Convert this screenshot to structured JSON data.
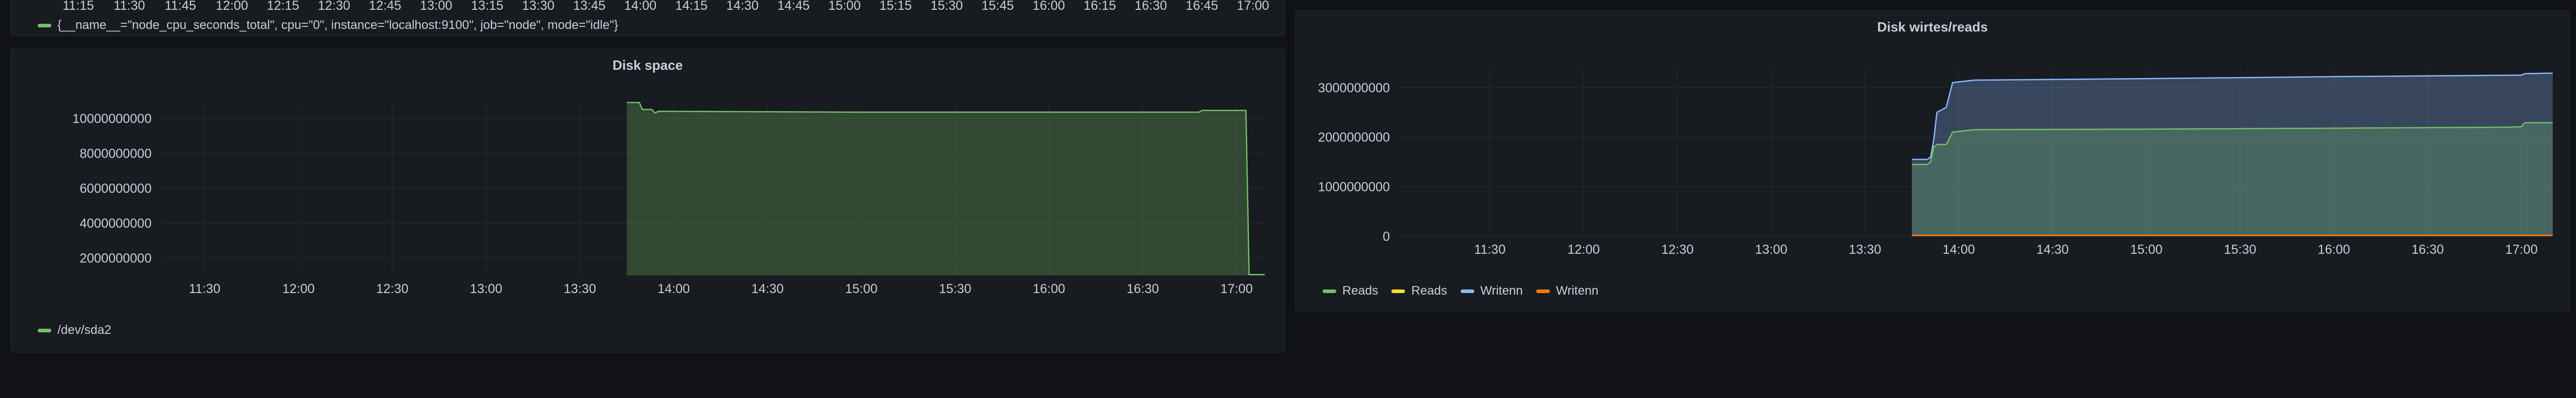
{
  "top_panel": {
    "x_ticks": [
      "11:15",
      "11:30",
      "11:45",
      "12:00",
      "12:15",
      "12:30",
      "12:45",
      "13:00",
      "13:15",
      "13:30",
      "13:45",
      "14:00",
      "14:15",
      "14:30",
      "14:45",
      "15:00",
      "15:15",
      "15:30",
      "15:45",
      "16:00",
      "16:15",
      "16:30",
      "16:45",
      "17:00"
    ],
    "legend": [
      {
        "label": "{__name__=\"node_cpu_seconds_total\", cpu=\"0\", instance=\"localhost:9100\", job=\"node\", mode=\"idle\"}",
        "color": "#73bf69"
      }
    ]
  },
  "disk_space": {
    "title": "Disk space",
    "legend": [
      {
        "label": "/dev/sda2",
        "color": "#73bf69"
      }
    ],
    "chart_data": {
      "type": "area",
      "title": "Disk space",
      "y_ticks": [
        "2000000000",
        "4000000000",
        "6000000000",
        "8000000000",
        "10000000000"
      ],
      "x_ticks": [
        "11:30",
        "12:00",
        "12:30",
        "13:00",
        "13:30",
        "14:00",
        "14:30",
        "15:00",
        "15:30",
        "16:00",
        "16:30",
        "17:00"
      ],
      "ylim": [
        1000000000,
        11000000000
      ],
      "xlim": [
        "11:16",
        "17:09"
      ],
      "series": [
        {
          "name": "/dev/sda2",
          "color": "#73bf69",
          "points": [
            [
              "13:45",
              10900000000
            ],
            [
              "13:49",
              10900000000
            ],
            [
              "13:50",
              10500000000
            ],
            [
              "13:53",
              10500000000
            ],
            [
              "13:54",
              10300000000
            ],
            [
              "13:55",
              10400000000
            ],
            [
              "15:00",
              10350000000
            ],
            [
              "16:48",
              10350000000
            ],
            [
              "16:49",
              10450000000
            ],
            [
              "17:03",
              10450000000
            ],
            [
              "17:04",
              1050000000
            ],
            [
              "17:09",
              1050000000
            ]
          ]
        }
      ]
    }
  },
  "disk_rw": {
    "title": "Disk wirtes/reads",
    "legend": [
      {
        "label": "Reads",
        "color": "#73bf69"
      },
      {
        "label": "Reads",
        "color": "#fade2a"
      },
      {
        "label": "Writenn",
        "color": "#8ab8ff"
      },
      {
        "label": "Writenn",
        "color": "#ff780a"
      }
    ],
    "chart_data": {
      "type": "area",
      "title": "Disk wirtes/reads",
      "y_ticks": [
        "0",
        "1000000000",
        "2000000000",
        "3000000000"
      ],
      "x_ticks": [
        "11:30",
        "12:00",
        "12:30",
        "13:00",
        "13:30",
        "14:00",
        "14:30",
        "15:00",
        "15:30",
        "16:00",
        "16:30",
        "17:00"
      ],
      "ylim": [
        0,
        3400000000
      ],
      "xlim": [
        "11:01",
        "17:10"
      ],
      "series": [
        {
          "name": "Writenn",
          "color": "#8ab8ff",
          "points": [
            [
              "13:45",
              1550000000
            ],
            [
              "13:50",
              1550000000
            ],
            [
              "13:51",
              1600000000
            ],
            [
              "13:52",
              1950000000
            ],
            [
              "13:53",
              2500000000
            ],
            [
              "13:56",
              2600000000
            ],
            [
              "13:58",
              3100000000
            ],
            [
              "14:05",
              3150000000
            ],
            [
              "15:00",
              3180000000
            ],
            [
              "16:00",
              3220000000
            ],
            [
              "17:00",
              3250000000
            ],
            [
              "17:01",
              3280000000
            ],
            [
              "17:10",
              3290000000
            ]
          ]
        },
        {
          "name": "Reads",
          "color": "#73bf69",
          "points": [
            [
              "13:45",
              1450000000
            ],
            [
              "13:50",
              1450000000
            ],
            [
              "13:51",
              1500000000
            ],
            [
              "13:52",
              1800000000
            ],
            [
              "13:53",
              1850000000
            ],
            [
              "13:56",
              1850000000
            ],
            [
              "13:58",
              2100000000
            ],
            [
              "14:05",
              2150000000
            ],
            [
              "15:00",
              2160000000
            ],
            [
              "16:00",
              2180000000
            ],
            [
              "16:55",
              2200000000
            ],
            [
              "17:00",
              2210000000
            ],
            [
              "17:01",
              2290000000
            ],
            [
              "17:10",
              2290000000
            ]
          ]
        },
        {
          "name": "Writenn",
          "color": "#ff780a",
          "points": [
            [
              "13:45",
              20000000
            ],
            [
              "17:10",
              20000000
            ]
          ]
        }
      ]
    }
  }
}
